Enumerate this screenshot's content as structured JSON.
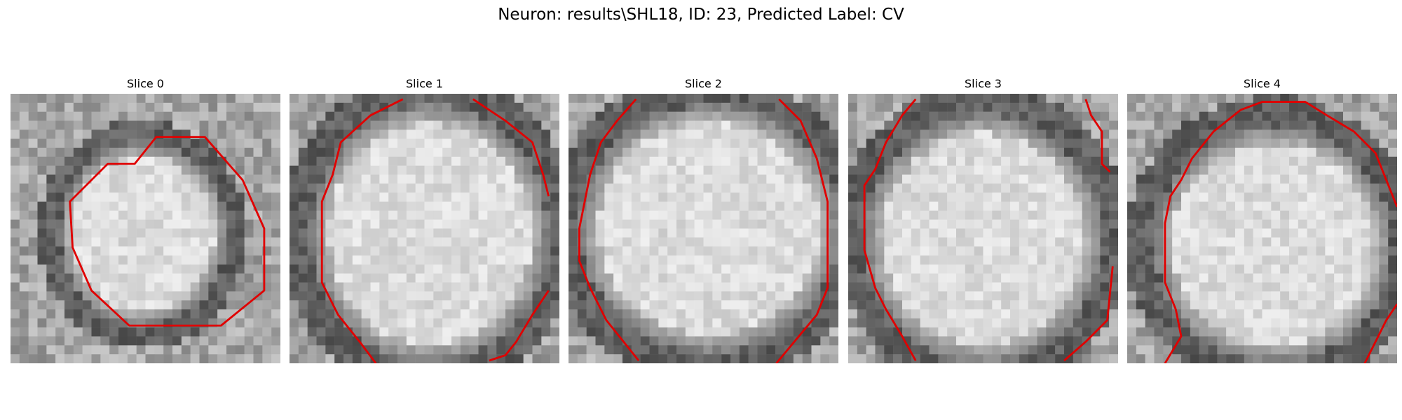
{
  "figure": {
    "title": "Neuron: results\\SHL18, ID: 23, Predicted Label: CV",
    "panels": [
      {
        "title": "Slice 0"
      },
      {
        "title": "Slice 1"
      },
      {
        "title": "Slice 2"
      },
      {
        "title": "Slice 3"
      },
      {
        "title": "Slice 4"
      }
    ]
  },
  "colors": {
    "contour": "#e00000",
    "background": "#ffffff"
  }
}
